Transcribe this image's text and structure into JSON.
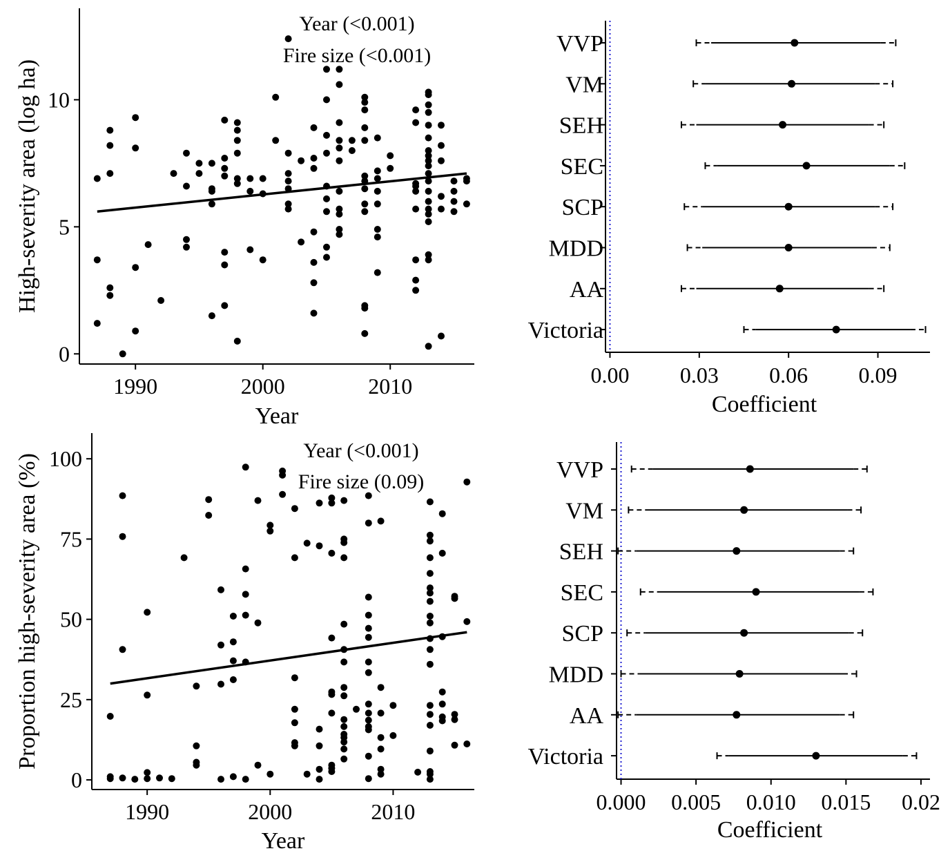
{
  "chart_data": [
    {
      "type": "scatter",
      "xlabel": "Year",
      "ylabel": "High-severity area (log ha)",
      "xlim": [
        1985.6,
        2016.6
      ],
      "ylim": [
        -0.4,
        13.6
      ],
      "xticks": [
        1990,
        2000,
        2010
      ],
      "yticks": [
        0,
        5,
        10
      ],
      "annotations": [
        "Year (<0.001)",
        "Fire size (<0.001)"
      ],
      "trend_line": {
        "x": [
          1987,
          2016
        ],
        "y": [
          5.6,
          7.1
        ]
      },
      "points": [
        [
          1987,
          6.9
        ],
        [
          1987,
          3.7
        ],
        [
          1987,
          1.2
        ],
        [
          1988,
          8.8
        ],
        [
          1988,
          8.2
        ],
        [
          1988,
          7.1
        ],
        [
          1988,
          2.6
        ],
        [
          1988,
          2.3
        ],
        [
          1989,
          0.0
        ],
        [
          1990,
          9.3
        ],
        [
          1990,
          8.1
        ],
        [
          1990,
          3.4
        ],
        [
          1990,
          0.9
        ],
        [
          1991,
          4.3
        ],
        [
          1992,
          2.1
        ],
        [
          1993,
          7.1
        ],
        [
          1994,
          7.9
        ],
        [
          1994,
          6.6
        ],
        [
          1994,
          4.5
        ],
        [
          1994,
          4.2
        ],
        [
          1995,
          7.5
        ],
        [
          1995,
          7.1
        ],
        [
          1996,
          7.5
        ],
        [
          1996,
          6.5
        ],
        [
          1996,
          6.4
        ],
        [
          1996,
          5.9
        ],
        [
          1996,
          1.5
        ],
        [
          1997,
          9.2
        ],
        [
          1997,
          7.7
        ],
        [
          1997,
          7.3
        ],
        [
          1997,
          7.0
        ],
        [
          1997,
          4.0
        ],
        [
          1997,
          3.5
        ],
        [
          1997,
          1.9
        ],
        [
          1998,
          9.1
        ],
        [
          1998,
          8.8
        ],
        [
          1998,
          8.4
        ],
        [
          1998,
          7.9
        ],
        [
          1998,
          6.9
        ],
        [
          1998,
          6.7
        ],
        [
          1998,
          0.5
        ],
        [
          1999,
          6.9
        ],
        [
          1999,
          6.4
        ],
        [
          1999,
          4.1
        ],
        [
          2000,
          6.9
        ],
        [
          2000,
          6.3
        ],
        [
          2000,
          3.7
        ],
        [
          2001,
          10.1
        ],
        [
          2001,
          8.4
        ],
        [
          2002,
          12.4
        ],
        [
          2002,
          7.9
        ],
        [
          2002,
          7.1
        ],
        [
          2002,
          6.8
        ],
        [
          2002,
          6.5
        ],
        [
          2002,
          5.9
        ],
        [
          2002,
          5.7
        ],
        [
          2003,
          7.6
        ],
        [
          2003,
          4.4
        ],
        [
          2004,
          8.9
        ],
        [
          2004,
          7.7
        ],
        [
          2004,
          7.3
        ],
        [
          2004,
          4.8
        ],
        [
          2004,
          3.6
        ],
        [
          2004,
          2.8
        ],
        [
          2004,
          1.6
        ],
        [
          2005,
          11.2
        ],
        [
          2005,
          10.0
        ],
        [
          2005,
          8.6
        ],
        [
          2005,
          7.9
        ],
        [
          2005,
          6.6
        ],
        [
          2005,
          6.1
        ],
        [
          2005,
          5.6
        ],
        [
          2005,
          4.2
        ],
        [
          2005,
          3.8
        ],
        [
          2006,
          11.2
        ],
        [
          2006,
          10.6
        ],
        [
          2006,
          9.1
        ],
        [
          2006,
          8.4
        ],
        [
          2006,
          8.1
        ],
        [
          2006,
          7.6
        ],
        [
          2006,
          6.4
        ],
        [
          2006,
          5.7
        ],
        [
          2006,
          5.5
        ],
        [
          2006,
          4.9
        ],
        [
          2006,
          4.7
        ],
        [
          2007,
          8.4
        ],
        [
          2007,
          8.0
        ],
        [
          2008,
          10.1
        ],
        [
          2008,
          9.9
        ],
        [
          2008,
          9.6
        ],
        [
          2008,
          8.9
        ],
        [
          2008,
          8.4
        ],
        [
          2008,
          7.0
        ],
        [
          2008,
          6.8
        ],
        [
          2008,
          6.5
        ],
        [
          2008,
          5.9
        ],
        [
          2008,
          5.6
        ],
        [
          2008,
          1.9
        ],
        [
          2008,
          1.8
        ],
        [
          2008,
          0.8
        ],
        [
          2009,
          8.5
        ],
        [
          2009,
          7.2
        ],
        [
          2009,
          6.9
        ],
        [
          2009,
          6.4
        ],
        [
          2009,
          5.9
        ],
        [
          2009,
          4.9
        ],
        [
          2009,
          4.6
        ],
        [
          2009,
          3.2
        ],
        [
          2010,
          7.8
        ],
        [
          2010,
          7.3
        ],
        [
          2012,
          9.6
        ],
        [
          2012,
          9.1
        ],
        [
          2012,
          6.7
        ],
        [
          2012,
          6.6
        ],
        [
          2012,
          6.4
        ],
        [
          2012,
          5.7
        ],
        [
          2012,
          3.7
        ],
        [
          2012,
          2.9
        ],
        [
          2012,
          2.5
        ],
        [
          2013,
          10.3
        ],
        [
          2013,
          10.2
        ],
        [
          2013,
          9.8
        ],
        [
          2013,
          9.5
        ],
        [
          2013,
          9.0
        ],
        [
          2013,
          8.5
        ],
        [
          2013,
          8.0
        ],
        [
          2013,
          7.8
        ],
        [
          2013,
          7.6
        ],
        [
          2013,
          7.4
        ],
        [
          2013,
          7.1
        ],
        [
          2013,
          6.8
        ],
        [
          2013,
          6.4
        ],
        [
          2013,
          6.0
        ],
        [
          2013,
          5.7
        ],
        [
          2013,
          5.5
        ],
        [
          2013,
          5.2
        ],
        [
          2013,
          3.9
        ],
        [
          2013,
          3.7
        ],
        [
          2013,
          0.3
        ],
        [
          2014,
          9.0
        ],
        [
          2014,
          8.2
        ],
        [
          2014,
          7.6
        ],
        [
          2014,
          6.2
        ],
        [
          2014,
          5.7
        ],
        [
          2014,
          0.7
        ],
        [
          2015,
          6.8
        ],
        [
          2015,
          6.4
        ],
        [
          2015,
          6.0
        ],
        [
          2015,
          5.6
        ],
        [
          2016,
          6.9
        ],
        [
          2016,
          6.8
        ],
        [
          2016,
          5.9
        ]
      ]
    },
    {
      "type": "errorbar",
      "xlabel": "Coefficient",
      "xlim": [
        -0.0015,
        0.1075
      ],
      "xticks": [
        0.0,
        0.03,
        0.06,
        0.09
      ],
      "xtick_labels": [
        "0.00",
        "0.03",
        "0.06",
        "0.09"
      ],
      "reference_line": 0.0,
      "categories": [
        "VVP",
        "VM",
        "SEH",
        "SEC",
        "SCP",
        "MDD",
        "AA",
        "Victoria"
      ],
      "estimates": [
        0.062,
        0.061,
        0.058,
        0.066,
        0.06,
        0.06,
        0.057,
        0.076
      ],
      "inner_interval": [
        [
          0.034,
          0.091
        ],
        [
          0.032,
          0.089
        ],
        [
          0.029,
          0.087
        ],
        [
          0.036,
          0.094
        ],
        [
          0.031,
          0.089
        ],
        [
          0.031,
          0.088
        ],
        [
          0.029,
          0.087
        ],
        [
          0.049,
          0.101
        ]
      ],
      "outer_interval": [
        [
          0.029,
          0.096
        ],
        [
          0.028,
          0.095
        ],
        [
          0.024,
          0.092
        ],
        [
          0.032,
          0.099
        ],
        [
          0.025,
          0.095
        ],
        [
          0.026,
          0.094
        ],
        [
          0.024,
          0.092
        ],
        [
          0.045,
          0.106
        ]
      ]
    },
    {
      "type": "scatter",
      "xlabel": "Year",
      "ylabel": "Proportion high-severity area (%)",
      "xlim": [
        1985.5,
        2016.6
      ],
      "ylim": [
        -3,
        108
      ],
      "xticks": [
        1990,
        2000,
        2010
      ],
      "yticks": [
        0,
        25,
        50,
        75,
        100
      ],
      "annotations": [
        "Year (<0.001)",
        "Fire size (0.09)"
      ],
      "trend_line": {
        "x": [
          1987,
          2016
        ],
        "y": [
          30,
          46
        ]
      },
      "points": [
        [
          1987,
          19.8
        ],
        [
          1987,
          1.0
        ],
        [
          1987,
          0.4
        ],
        [
          1988,
          88.5
        ],
        [
          1988,
          75.8
        ],
        [
          1988,
          40.6
        ],
        [
          1988,
          0.6
        ],
        [
          1989,
          0.2
        ],
        [
          1990,
          52.2
        ],
        [
          1990,
          26.4
        ],
        [
          1990,
          2.3
        ],
        [
          1990,
          0.4
        ],
        [
          1991,
          0.6
        ],
        [
          1992,
          0.4
        ],
        [
          1993,
          69.2
        ],
        [
          1994,
          29.2
        ],
        [
          1994,
          10.6
        ],
        [
          1994,
          5.5
        ],
        [
          1994,
          4.6
        ],
        [
          1995,
          87.3
        ],
        [
          1995,
          82.4
        ],
        [
          1996,
          59.2
        ],
        [
          1996,
          42.0
        ],
        [
          1996,
          29.8
        ],
        [
          1996,
          0.2
        ],
        [
          1997,
          51.0
        ],
        [
          1997,
          43.0
        ],
        [
          1997,
          37.1
        ],
        [
          1997,
          31.2
        ],
        [
          1997,
          1.0
        ],
        [
          1998,
          97.4
        ],
        [
          1998,
          65.7
        ],
        [
          1998,
          57.8
        ],
        [
          1998,
          51.3
        ],
        [
          1998,
          36.7
        ],
        [
          1998,
          0.2
        ],
        [
          1999,
          87.0
        ],
        [
          1999,
          48.9
        ],
        [
          1999,
          4.6
        ],
        [
          2000,
          79.3
        ],
        [
          2000,
          77.5
        ],
        [
          2000,
          1.8
        ],
        [
          2001,
          96.2
        ],
        [
          2001,
          94.9
        ],
        [
          2001,
          88.9
        ],
        [
          2002,
          84.5
        ],
        [
          2002,
          69.2
        ],
        [
          2002,
          31.8
        ],
        [
          2002,
          22.0
        ],
        [
          2002,
          17.8
        ],
        [
          2002,
          11.6
        ],
        [
          2002,
          10.6
        ],
        [
          2003,
          73.7
        ],
        [
          2003,
          1.8
        ],
        [
          2004,
          86.2
        ],
        [
          2004,
          72.9
        ],
        [
          2004,
          15.8
        ],
        [
          2004,
          10.6
        ],
        [
          2004,
          3.3
        ],
        [
          2004,
          0.2
        ],
        [
          2005,
          87.8
        ],
        [
          2005,
          86.2
        ],
        [
          2005,
          70.6
        ],
        [
          2005,
          44.2
        ],
        [
          2005,
          27.4
        ],
        [
          2005,
          26.6
        ],
        [
          2005,
          20.8
        ],
        [
          2005,
          4.6
        ],
        [
          2005,
          3.6
        ],
        [
          2005,
          2.6
        ],
        [
          2006,
          87.0
        ],
        [
          2006,
          75.0
        ],
        [
          2006,
          73.9
        ],
        [
          2006,
          69.2
        ],
        [
          2006,
          48.5
        ],
        [
          2006,
          40.6
        ],
        [
          2006,
          36.7
        ],
        [
          2006,
          28.8
        ],
        [
          2006,
          26.2
        ],
        [
          2006,
          18.8
        ],
        [
          2006,
          16.6
        ],
        [
          2006,
          14.2
        ],
        [
          2006,
          13.2
        ],
        [
          2006,
          11.8
        ],
        [
          2006,
          9.6
        ],
        [
          2006,
          6.5
        ],
        [
          2007,
          22.0
        ],
        [
          2008,
          88.5
        ],
        [
          2008,
          80.0
        ],
        [
          2008,
          56.9
        ],
        [
          2008,
          51.3
        ],
        [
          2008,
          47.2
        ],
        [
          2008,
          44.4
        ],
        [
          2008,
          36.7
        ],
        [
          2008,
          33.4
        ],
        [
          2008,
          23.6
        ],
        [
          2008,
          20.8
        ],
        [
          2008,
          18.6
        ],
        [
          2008,
          16.6
        ],
        [
          2008,
          15.6
        ],
        [
          2008,
          7.4
        ],
        [
          2008,
          0.4
        ],
        [
          2009,
          80.6
        ],
        [
          2009,
          28.8
        ],
        [
          2009,
          20.8
        ],
        [
          2009,
          13.2
        ],
        [
          2009,
          9.6
        ],
        [
          2009,
          3.3
        ],
        [
          2009,
          1.8
        ],
        [
          2010,
          23.2
        ],
        [
          2010,
          13.8
        ],
        [
          2012,
          2.4
        ],
        [
          2013,
          86.6
        ],
        [
          2013,
          76.2
        ],
        [
          2013,
          74.4
        ],
        [
          2013,
          69.2
        ],
        [
          2013,
          64.3
        ],
        [
          2013,
          59.8
        ],
        [
          2013,
          58.2
        ],
        [
          2013,
          55.6
        ],
        [
          2013,
          51.0
        ],
        [
          2013,
          48.9
        ],
        [
          2013,
          44.0
        ],
        [
          2013,
          40.6
        ],
        [
          2013,
          36.0
        ],
        [
          2013,
          23.2
        ],
        [
          2013,
          20.4
        ],
        [
          2013,
          17.0
        ],
        [
          2013,
          9.0
        ],
        [
          2013,
          2.6
        ],
        [
          2013,
          1.8
        ],
        [
          2013,
          0.2
        ],
        [
          2014,
          82.9
        ],
        [
          2014,
          70.6
        ],
        [
          2014,
          44.6
        ],
        [
          2014,
          27.4
        ],
        [
          2014,
          23.6
        ],
        [
          2014,
          19.6
        ],
        [
          2014,
          18.4
        ],
        [
          2015,
          57.2
        ],
        [
          2015,
          56.5
        ],
        [
          2015,
          20.4
        ],
        [
          2015,
          18.8
        ],
        [
          2015,
          10.8
        ],
        [
          2016,
          92.8
        ],
        [
          2016,
          49.3
        ],
        [
          2016,
          11.2
        ]
      ]
    },
    {
      "type": "errorbar",
      "xlabel": "Coefficient",
      "xlim": [
        -0.0003,
        0.0206
      ],
      "xticks": [
        0.0,
        0.005,
        0.01,
        0.015,
        0.02
      ],
      "xtick_labels": [
        "0.000",
        "0.005",
        "0.010",
        "0.015",
        "0.02"
      ],
      "reference_line": 0.0,
      "categories": [
        "VVP",
        "VM",
        "SEH",
        "SEC",
        "SCP",
        "MDD",
        "AA",
        "Victoria"
      ],
      "estimates": [
        0.0086,
        0.0082,
        0.0077,
        0.009,
        0.0082,
        0.0079,
        0.0077,
        0.013
      ],
      "inner_interval": [
        [
          0.0021,
          0.0155
        ],
        [
          0.0016,
          0.0151
        ],
        [
          0.001,
          0.0146
        ],
        [
          0.0024,
          0.0159
        ],
        [
          0.0016,
          0.0152
        ],
        [
          0.0012,
          0.0148
        ],
        [
          0.001,
          0.0146
        ],
        [
          0.0072,
          0.0188
        ]
      ],
      "outer_interval": [
        [
          0.0007,
          0.0164
        ],
        [
          0.0005,
          0.016
        ],
        [
          -0.0002,
          0.0155
        ],
        [
          0.0013,
          0.0168
        ],
        [
          0.0004,
          0.0161
        ],
        [
          0.0,
          0.0157
        ],
        [
          -0.0002,
          0.0155
        ],
        [
          0.0064,
          0.0197
        ]
      ]
    }
  ]
}
